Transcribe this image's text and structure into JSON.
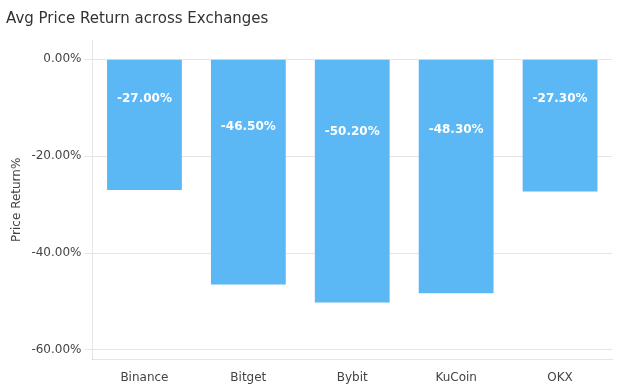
{
  "chart_data": {
    "type": "bar",
    "title": "Avg Price Return across Exchanges",
    "categories": [
      "Binance",
      "Bitget",
      "Bybit",
      "KuCoin",
      "OKX"
    ],
    "values": [
      -27.0,
      -46.5,
      -50.2,
      -48.3,
      -27.3
    ],
    "value_labels": [
      "-27.00%",
      "-46.50%",
      "-50.20%",
      "-48.30%",
      "-27.30%"
    ],
    "data_labels": true,
    "color": "#5BB8F5",
    "ylabel": "Price Return%",
    "ylim": [
      -62,
      4
    ],
    "yticks": [
      {
        "value": 0,
        "label": "0.00%"
      },
      {
        "value": -20,
        "label": "-20.00%"
      },
      {
        "value": -40,
        "label": "-40.00%"
      },
      {
        "value": -60,
        "label": "-60.00%"
      }
    ],
    "grid": true
  }
}
